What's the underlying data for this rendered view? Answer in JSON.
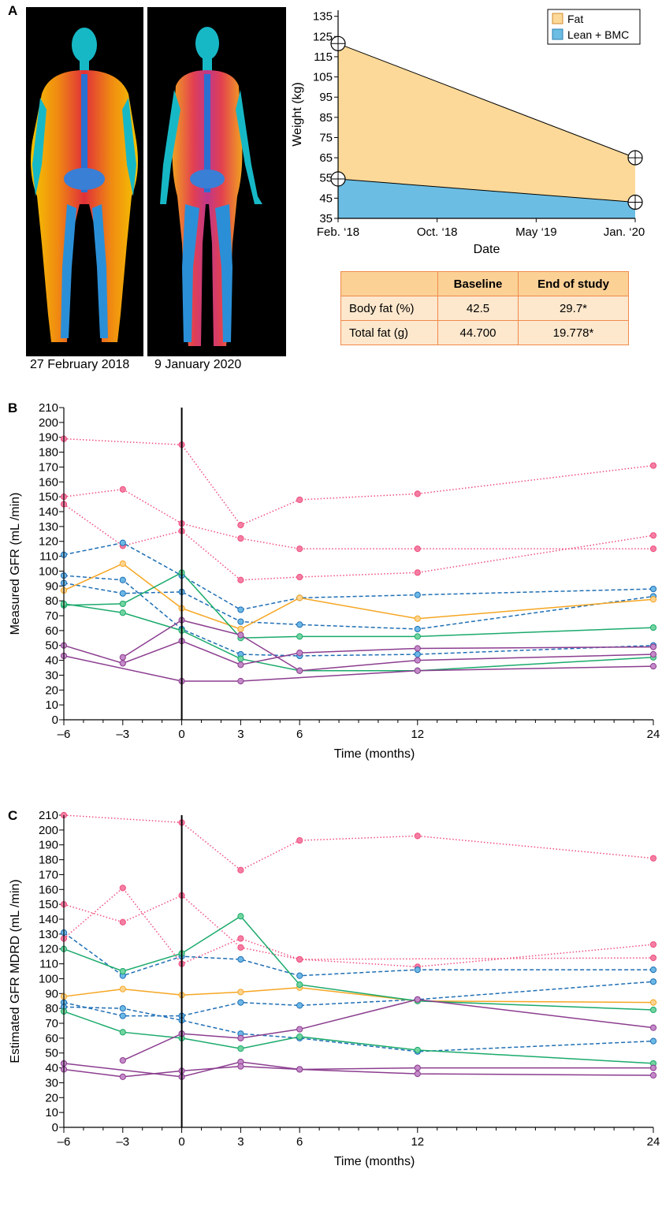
{
  "panels": {
    "a": "A",
    "b": "B",
    "c": "C"
  },
  "scans": {
    "before_caption": "27 February 2018",
    "after_caption": "9 January 2020"
  },
  "chart_data": [
    {
      "id": "weight",
      "type": "area",
      "ylabel": "Weight (kg)",
      "xlabel": "Date",
      "x_ticks": [
        "Feb. ‘18",
        "Oct. ‘18",
        "May ‘19",
        "Jan. ‘20"
      ],
      "y_ticks": [
        35,
        45,
        55,
        65,
        75,
        85,
        95,
        105,
        115,
        125,
        135
      ],
      "ylim": [
        35,
        138
      ],
      "x": [
        "Feb. ‘18",
        "Jan. ‘20"
      ],
      "series": [
        {
          "name": "Fat",
          "values": [
            121.5,
            65
          ],
          "color": "#fcd998"
        },
        {
          "name": "Lean + BMC",
          "values": [
            54.5,
            43
          ],
          "color": "#6cbde3"
        }
      ],
      "legend_position": "top-right",
      "marker": "circle-cross"
    },
    {
      "id": "measured_gfr",
      "type": "line",
      "ylabel": "Measured GFR (mL /min)",
      "xlabel": "Time (months)",
      "x_ticks": [
        -6,
        -3,
        0,
        3,
        6,
        12,
        24
      ],
      "x_tick_labels": [
        "–6",
        "–3",
        "0",
        "3",
        "6",
        "12",
        "24"
      ],
      "xlim": [
        -6,
        24
      ],
      "ylim": [
        0,
        210
      ],
      "y_tick_step": 10,
      "vline_x": 0,
      "series": [
        {
          "color": "#ef4e7e",
          "dash": "dot",
          "points": [
            [
              -6,
              189
            ],
            [
              0,
              185
            ],
            [
              3,
              131
            ],
            [
              6,
              148
            ],
            [
              12,
              152
            ],
            [
              24,
              171
            ]
          ]
        },
        {
          "color": "#ef4e7e",
          "dash": "dot",
          "points": [
            [
              -6,
              150
            ],
            [
              -3,
              155
            ],
            [
              0,
              132
            ],
            [
              3,
              122
            ],
            [
              6,
              115
            ],
            [
              12,
              115
            ],
            [
              24,
              115
            ]
          ]
        },
        {
          "color": "#ef4e7e",
          "dash": "dot",
          "points": [
            [
              -6,
              145
            ],
            [
              -3,
              117
            ],
            [
              0,
              127
            ],
            [
              3,
              94
            ],
            [
              6,
              96
            ],
            [
              12,
              99
            ],
            [
              24,
              124
            ]
          ]
        },
        {
          "color": "#1f6fb5",
          "dash": "dash",
          "points": [
            [
              -6,
              111
            ],
            [
              -3,
              119
            ],
            [
              0,
              97
            ],
            [
              3,
              74
            ],
            [
              6,
              82
            ],
            [
              12,
              84
            ],
            [
              24,
              88
            ]
          ]
        },
        {
          "color": "#1f6fb5",
          "dash": "dash",
          "points": [
            [
              -6,
              97
            ],
            [
              -3,
              94
            ],
            [
              0,
              61
            ],
            [
              3,
              44
            ],
            [
              6,
              43
            ],
            [
              12,
              44
            ],
            [
              24,
              50
            ]
          ]
        },
        {
          "color": "#1f6fb5",
          "dash": "dash",
          "points": [
            [
              -6,
              92
            ],
            [
              -3,
              85
            ],
            [
              0,
              86
            ],
            [
              3,
              66
            ],
            [
              6,
              64
            ],
            [
              12,
              61
            ],
            [
              24,
              83
            ]
          ]
        },
        {
          "color": "#f6a623",
          "dash": "solid",
          "points": [
            [
              -6,
              87
            ],
            [
              -3,
              105
            ],
            [
              0,
              75
            ],
            [
              3,
              61
            ],
            [
              6,
              82
            ],
            [
              12,
              68
            ],
            [
              24,
              81
            ]
          ]
        },
        {
          "color": "#1aaa6b",
          "dash": "solid",
          "points": [
            [
              -6,
              77
            ],
            [
              -3,
              78
            ],
            [
              0,
              99
            ],
            [
              3,
              55
            ],
            [
              6,
              56
            ],
            [
              12,
              56
            ],
            [
              24,
              62
            ]
          ]
        },
        {
          "color": "#1aaa6b",
          "dash": "solid",
          "points": [
            [
              -6,
              78
            ],
            [
              -3,
              72
            ],
            [
              0,
              60
            ],
            [
              3,
              41
            ],
            [
              6,
              33
            ],
            [
              12,
              33
            ],
            [
              24,
              42
            ]
          ]
        },
        {
          "color": "#8b3d8f",
          "dash": "solid",
          "points": [
            [
              -6,
              50
            ],
            [
              -3,
              38
            ],
            [
              0,
              53
            ],
            [
              3,
              37
            ],
            [
              6,
              45
            ],
            [
              12,
              48
            ],
            [
              24,
              49
            ]
          ]
        },
        {
          "color": "#8b3d8f",
          "dash": "solid",
          "points": [
            [
              -3,
              42
            ],
            [
              0,
              67
            ],
            [
              3,
              57
            ],
            [
              6,
              33
            ],
            [
              12,
              40
            ],
            [
              24,
              44
            ]
          ]
        },
        {
          "color": "#8b3d8f",
          "dash": "solid",
          "points": [
            [
              -6,
              43
            ],
            [
              0,
              26
            ],
            [
              3,
              26
            ],
            [
              12,
              33
            ],
            [
              24,
              36
            ]
          ]
        }
      ]
    },
    {
      "id": "estimated_gfr",
      "type": "line",
      "ylabel": "Estimated GFR MDRD (mL /min)",
      "xlabel": "Time (months)",
      "x_ticks": [
        -6,
        -3,
        0,
        3,
        6,
        12,
        24
      ],
      "x_tick_labels": [
        "–6",
        "–3",
        "0",
        "3",
        "6",
        "12",
        "24"
      ],
      "xlim": [
        -6,
        24
      ],
      "ylim": [
        0,
        210
      ],
      "y_tick_step": 10,
      "vline_x": 0,
      "series": [
        {
          "color": "#ef4e7e",
          "dash": "dot",
          "points": [
            [
              -6,
              210
            ],
            [
              0,
              205
            ],
            [
              3,
              173
            ],
            [
              6,
              193
            ],
            [
              12,
              196
            ],
            [
              24,
              181
            ]
          ]
        },
        {
          "color": "#ef4e7e",
          "dash": "dot",
          "points": [
            [
              -6,
              150
            ],
            [
              -3,
              138
            ],
            [
              0,
              156
            ],
            [
              3,
              121
            ],
            [
              6,
              113
            ],
            [
              12,
              108
            ],
            [
              24,
              123
            ]
          ]
        },
        {
          "color": "#ef4e7e",
          "dash": "dot",
          "points": [
            [
              -6,
              127
            ],
            [
              -3,
              161
            ],
            [
              0,
              110
            ],
            [
              3,
              127
            ],
            [
              6,
              113
            ],
            [
              24,
              114
            ]
          ]
        },
        {
          "color": "#1f6fb5",
          "dash": "dash",
          "points": [
            [
              -6,
              131
            ],
            [
              -3,
              102
            ],
            [
              0,
              115
            ],
            [
              3,
              113
            ],
            [
              6,
              102
            ],
            [
              12,
              106
            ],
            [
              24,
              106
            ]
          ]
        },
        {
          "color": "#1f6fb5",
          "dash": "dash",
          "points": [
            [
              -6,
              84
            ],
            [
              -3,
              75
            ],
            [
              0,
              75
            ],
            [
              3,
              84
            ],
            [
              6,
              82
            ],
            [
              12,
              86
            ],
            [
              24,
              98
            ]
          ]
        },
        {
          "color": "#1f6fb5",
          "dash": "dash",
          "points": [
            [
              -6,
              81
            ],
            [
              -3,
              80
            ],
            [
              0,
              72
            ],
            [
              3,
              63
            ],
            [
              6,
              60
            ],
            [
              12,
              51
            ],
            [
              24,
              58
            ]
          ]
        },
        {
          "color": "#f6a623",
          "dash": "solid",
          "points": [
            [
              -6,
              88
            ],
            [
              -3,
              93
            ],
            [
              0,
              89
            ],
            [
              3,
              91
            ],
            [
              6,
              94
            ],
            [
              12,
              85
            ],
            [
              24,
              84
            ]
          ]
        },
        {
          "color": "#1aaa6b",
          "dash": "solid",
          "points": [
            [
              -6,
              120
            ],
            [
              -3,
              105
            ],
            [
              0,
              117
            ],
            [
              3,
              142
            ],
            [
              6,
              96
            ],
            [
              12,
              85
            ],
            [
              24,
              79
            ]
          ]
        },
        {
          "color": "#1aaa6b",
          "dash": "solid",
          "points": [
            [
              -6,
              78
            ],
            [
              -3,
              64
            ],
            [
              0,
              60
            ],
            [
              3,
              53
            ],
            [
              6,
              61
            ],
            [
              12,
              52
            ],
            [
              24,
              43
            ]
          ]
        },
        {
          "color": "#8b3d8f",
          "dash": "solid",
          "points": [
            [
              -3,
              45
            ],
            [
              0,
              63
            ],
            [
              3,
              60
            ],
            [
              6,
              66
            ],
            [
              12,
              86
            ],
            [
              24,
              67
            ]
          ]
        },
        {
          "color": "#8b3d8f",
          "dash": "solid",
          "points": [
            [
              -6,
              43
            ],
            [
              0,
              34
            ],
            [
              3,
              44
            ],
            [
              6,
              39
            ],
            [
              12,
              40
            ],
            [
              24,
              40
            ]
          ]
        },
        {
          "color": "#8b3d8f",
          "dash": "solid",
          "points": [
            [
              -6,
              39
            ],
            [
              -3,
              34
            ],
            [
              0,
              38
            ],
            [
              3,
              41
            ],
            [
              6,
              39
            ],
            [
              12,
              36
            ],
            [
              24,
              35
            ]
          ]
        }
      ]
    }
  ],
  "fat_table": {
    "headers": [
      "",
      "Baseline",
      "End of study"
    ],
    "rows": [
      {
        "label": "Body fat (%)",
        "baseline": "42.5",
        "end": "29.7*"
      },
      {
        "label": "Total fat (g)",
        "baseline": "44.700",
        "end": "19.778*"
      }
    ]
  }
}
